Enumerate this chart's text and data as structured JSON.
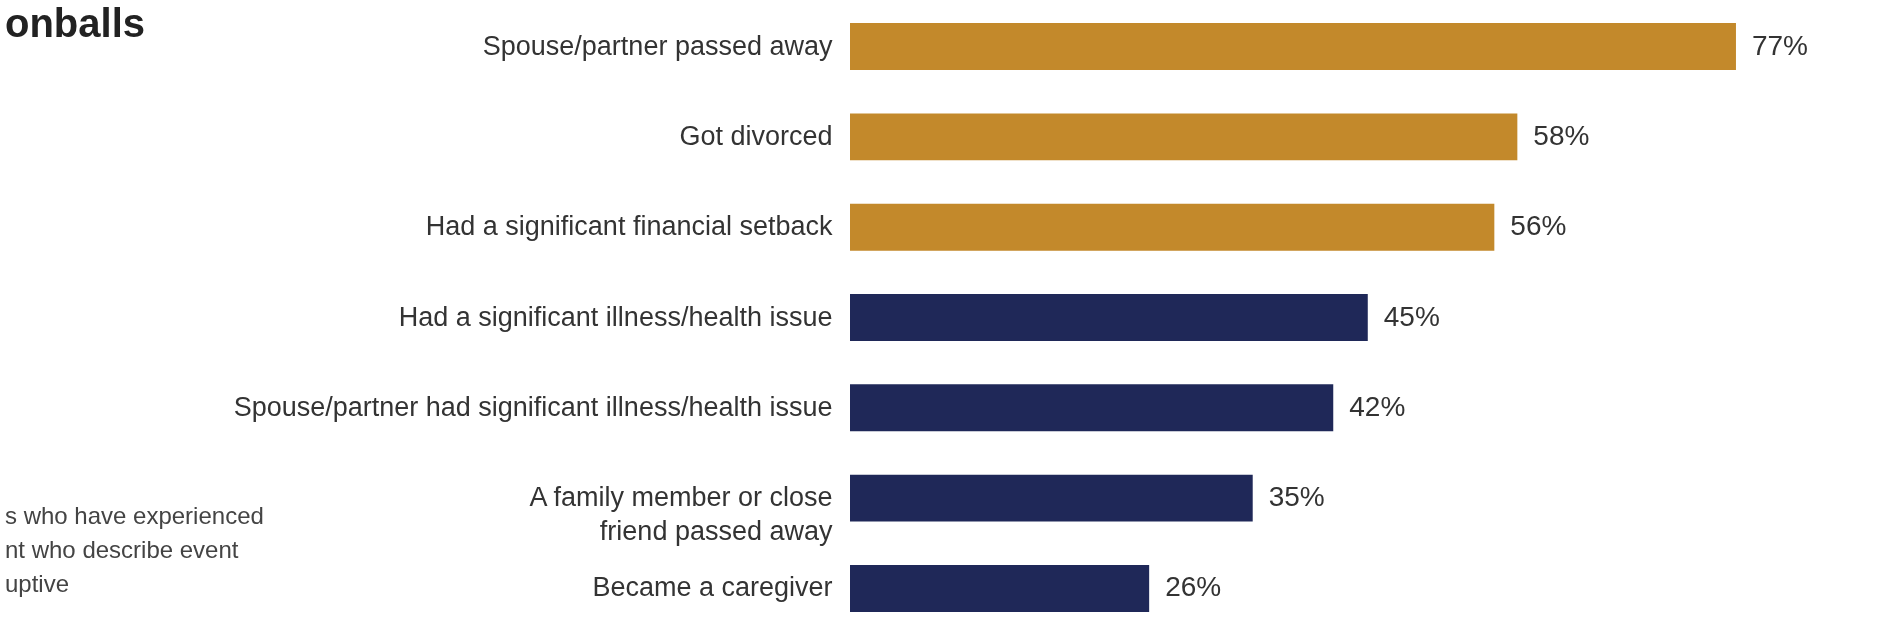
{
  "chart_data": {
    "type": "bar",
    "orientation": "horizontal",
    "title": "onballs",
    "categories": [
      "Spouse/partner passed away",
      "Got divorced",
      "Had a significant financial setback",
      "Had a significant illness/health issue",
      "Spouse/partner had significant illness/health issue",
      "A family member or close\nfriend passed away",
      "Became a caregiver"
    ],
    "values": [
      77,
      58,
      56,
      45,
      42,
      35,
      26
    ],
    "colors": [
      "#c3892b",
      "#c3892b",
      "#c3892b",
      "#1f2858",
      "#1f2858",
      "#1f2858",
      "#1f2858"
    ],
    "value_labels": [
      "77%",
      "58%",
      "56%",
      "45%",
      "42%",
      "35%",
      "26%"
    ],
    "annotations": [
      "s who have experienced\nnt who describe event\nuptive"
    ]
  }
}
